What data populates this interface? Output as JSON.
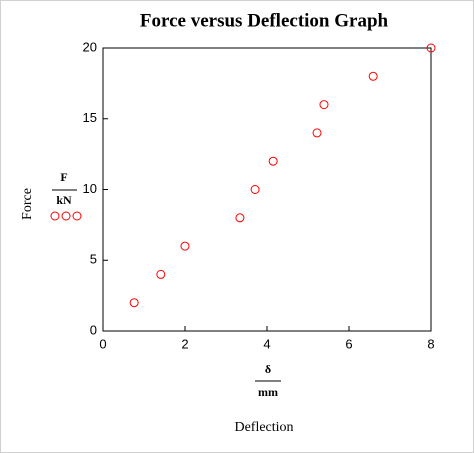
{
  "chart_data": {
    "type": "scatter",
    "title": "Force versus Deflection Graph",
    "ylabel": "Force",
    "y_unit": {
      "numerator": "F",
      "denominator": "kN"
    },
    "xlabel": "Deflection",
    "x_unit": {
      "numerator": "δ",
      "denominator": "mm"
    },
    "series": [
      {
        "name": "F/kN",
        "color": "#ff0000",
        "x": [
          0.76,
          1.41,
          2.0,
          3.34,
          3.71,
          4.15,
          5.22,
          5.39,
          6.59,
          8
        ],
        "values": [
          2,
          4,
          6,
          8,
          10,
          12,
          14,
          16,
          18,
          20
        ]
      }
    ],
    "xlim": [
      0,
      8
    ],
    "xticks": [
      0,
      2,
      4,
      6,
      8
    ],
    "ylim": [
      0,
      20
    ],
    "yticks": [
      0,
      5,
      10,
      15,
      20
    ],
    "grid": false
  }
}
